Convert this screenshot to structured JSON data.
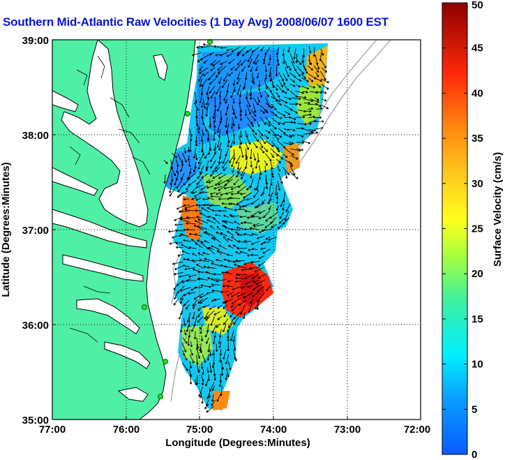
{
  "title": "Southern Mid-Atlantic Raw Velocities (1 Day Avg) 2008/06/07 1600 EST",
  "xlabel": "Longitude (Degrees:Minutes)",
  "ylabel": "Latitude (Degrees:Minutes)",
  "x_ticks": [
    "77:00",
    "76:00",
    "75:00",
    "74:00",
    "73:00",
    "72:00"
  ],
  "y_ticks": [
    "39:00",
    "38:00",
    "37:00",
    "36:00",
    "35:00"
  ],
  "colorbar": {
    "label": "Surface Velocity (cm/s)",
    "ticks": [
      "50",
      "45",
      "40",
      "35",
      "30",
      "25",
      "20",
      "15",
      "10",
      "5",
      "0"
    ],
    "min": 0,
    "max": 50,
    "units": "cm/s"
  },
  "map": {
    "lon_range": [
      -77,
      -72
    ],
    "lat_range": [
      35,
      39
    ],
    "grid": true,
    "land_color": "#4ff0a6",
    "coast_color": "#000000",
    "bathymetry_color": "#9a9a9a",
    "arrow_color": "#000000",
    "station_color": "#22dd22",
    "station_count": 5
  }
}
